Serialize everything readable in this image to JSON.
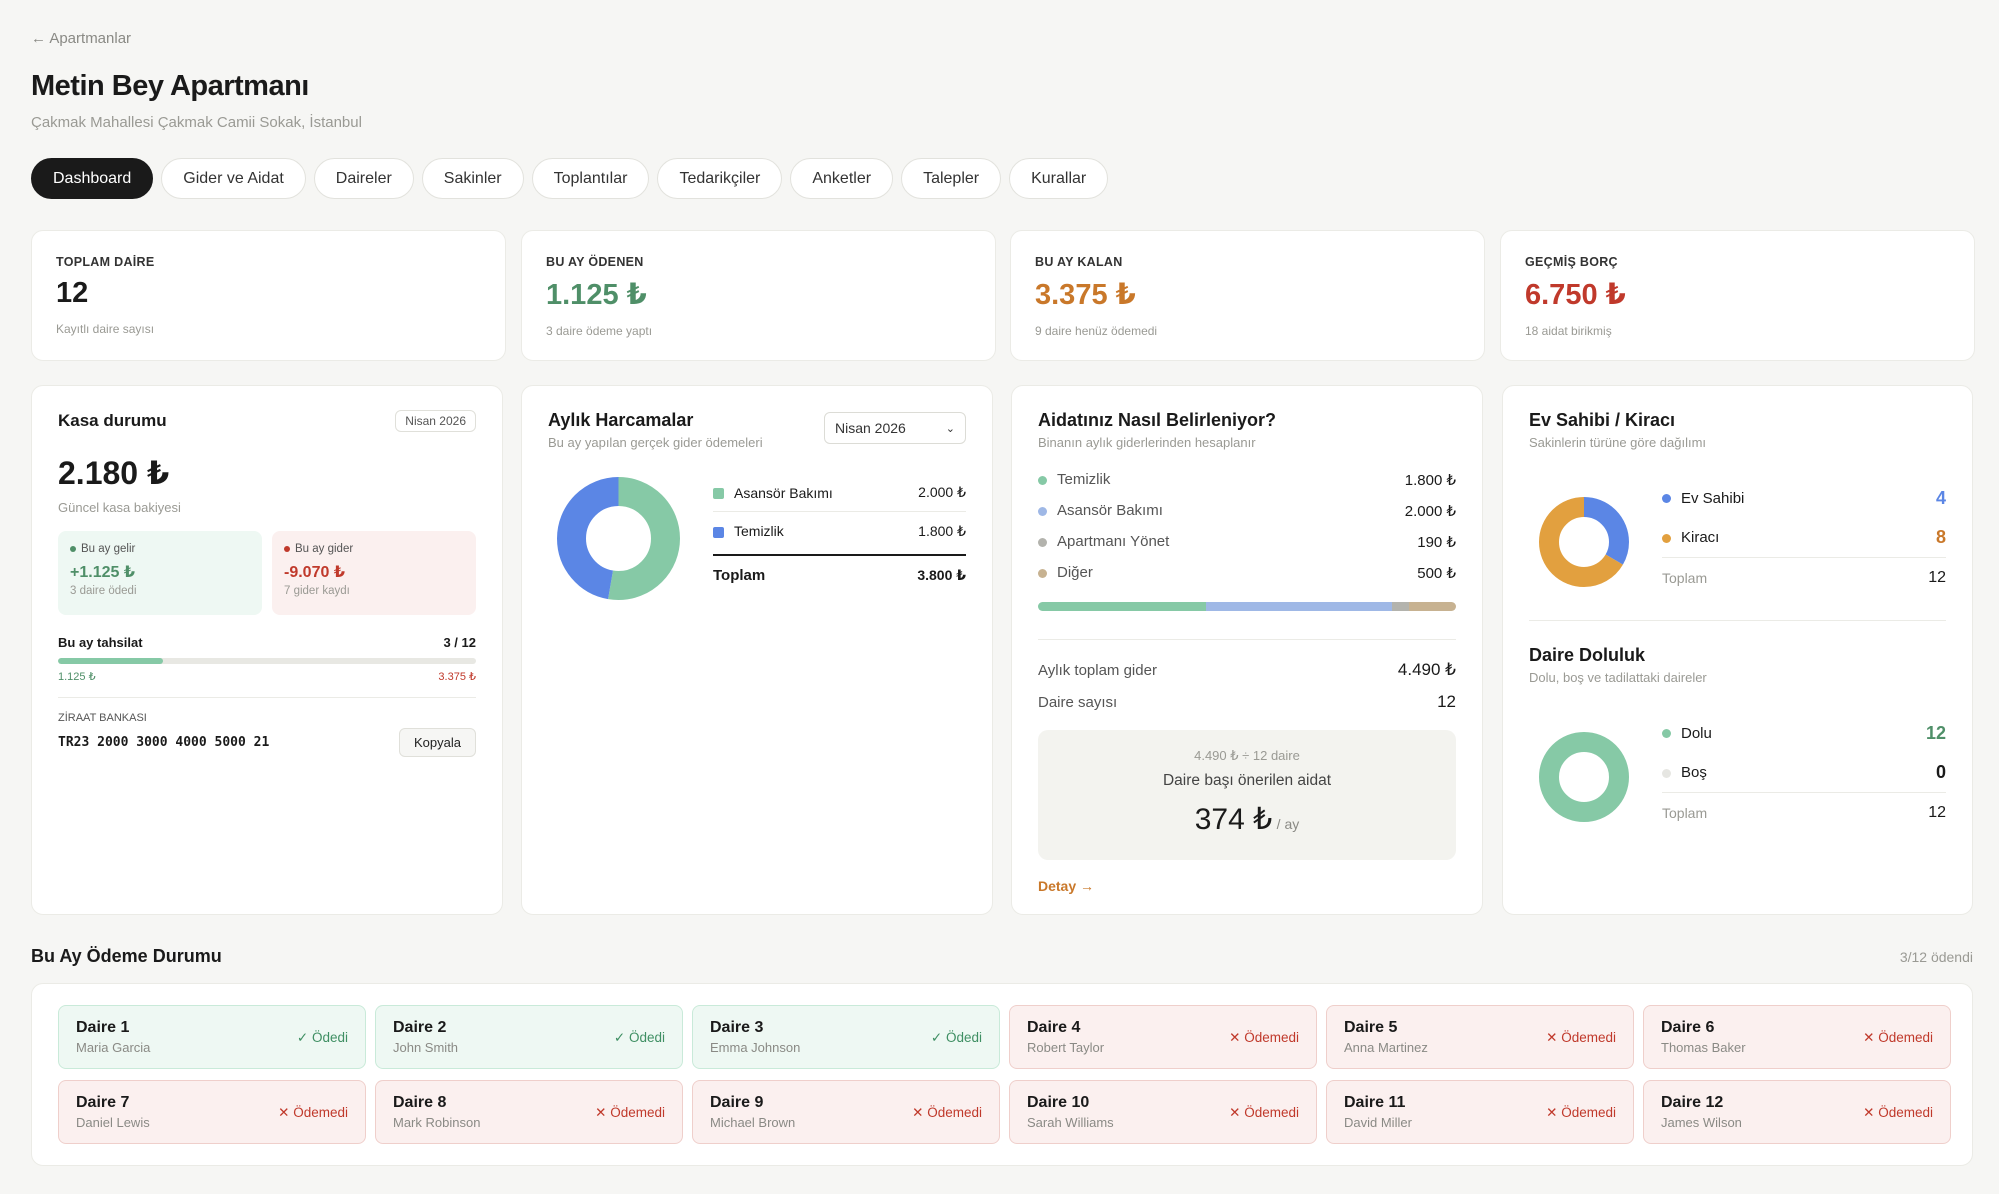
{
  "nav": {
    "back_label": "← Apartmanlar"
  },
  "header": {
    "title": "Metin Bey Apartmanı",
    "address": "Çakmak Mahallesi Çakmak Camii Sokak, İstanbul"
  },
  "tabs": [
    "Dashboard",
    "Gider ve Aidat",
    "Daireler",
    "Sakinler",
    "Toplantılar",
    "Tedarikçiler",
    "Anketler",
    "Talepler",
    "Kurallar"
  ],
  "kpis": [
    {
      "label": "TOPLAM DAİRE",
      "value": "12",
      "sub": "Kayıtlı daire sayısı",
      "color": "#1a1a1a"
    },
    {
      "label": "BU AY ÖDENEN",
      "value": "1.125 ₺",
      "sub": "3 daire ödeme yaptı",
      "color": "#4f8f68"
    },
    {
      "label": "BU AY KALAN",
      "value": "3.375 ₺",
      "sub": "9 daire henüz ödemedi",
      "color": "#c9782a"
    },
    {
      "label": "GEÇMİŞ BORÇ",
      "value": "6.750 ₺",
      "sub": "18 aidat birikmiş",
      "color": "#c0392b"
    }
  ],
  "kasa": {
    "title": "Kasa durumu",
    "period": "Nisan 2026",
    "balance": "2.180 ₺",
    "balance_label": "Güncel kasa bakiyesi",
    "income_label": "Bu ay gelir",
    "income_value": "+1.125 ₺",
    "income_sub": "3 daire ödedi",
    "expense_label": "Bu ay gider",
    "expense_value": "-9.070 ₺",
    "expense_sub": "7 gider kaydı",
    "collect_label": "Bu ay tahsilat",
    "collect_count": "3 / 12",
    "collect_progress": 0.25,
    "collected": "1.125 ₺",
    "remaining": "3.375 ₺",
    "bank_label": "ZİRAAT BANKASI",
    "iban": "TR23 2000 3000 4000 5000 21",
    "copy_label": "Kopyala"
  },
  "harcama": {
    "title": "Aylık Harcamalar",
    "subtitle": "Bu ay yapılan gerçek gider ödemeleri",
    "period": "Nisan 2026",
    "items": [
      {
        "label": "Asansör Bakımı",
        "value": "2.000 ₺",
        "amount": 2000,
        "color": "#86c9a6"
      },
      {
        "label": "Temizlik",
        "value": "1.800 ₺",
        "amount": 1800,
        "color": "#5b86e5"
      }
    ],
    "total_label": "Toplam",
    "total_value": "3.800 ₺"
  },
  "aidat": {
    "title": "Aidatınız Nasıl Belirleniyor?",
    "subtitle": "Binanın aylık giderlerinden hesaplanır",
    "items": [
      {
        "label": "Temizlik",
        "value": "1.800 ₺",
        "amount": 1800,
        "color": "#86c9a6"
      },
      {
        "label": "Asansör Bakımı",
        "value": "2.000 ₺",
        "amount": 2000,
        "color": "#9fb8e6"
      },
      {
        "label": "Apartmanı Yönet",
        "value": "190 ₺",
        "amount": 190,
        "color": "#b3b3ad"
      },
      {
        "label": "Diğer",
        "value": "500 ₺",
        "amount": 500,
        "color": "#c7b291"
      }
    ],
    "monthly_label": "Aylık toplam gider",
    "monthly_value": "4.490 ₺",
    "units_label": "Daire sayısı",
    "units_value": "12",
    "formula": "4.490 ₺ ÷ 12 daire",
    "suggest_label": "Daire başı önerilen aidat",
    "suggest_value": "374 ₺",
    "suggest_unit": "/ ay",
    "detail_link": "Detay →"
  },
  "evsahibi": {
    "title": "Ev Sahibi / Kiracı",
    "subtitle": "Sakinlerin türüne göre dağılımı",
    "items": [
      {
        "label": "Ev Sahibi",
        "value": "4",
        "count": 4,
        "color": "#5b86e5"
      },
      {
        "label": "Kiracı",
        "value": "8",
        "count": 8,
        "color": "#e2a03f"
      }
    ],
    "total_label": "Toplam",
    "total_value": "12"
  },
  "doluluk": {
    "title": "Daire Doluluk",
    "subtitle": "Dolu, boş ve tadilattaki daireler",
    "items": [
      {
        "label": "Dolu",
        "value": "12",
        "count": 12,
        "color": "#86c9a6",
        "value_color": "#4f8f68"
      },
      {
        "label": "Boş",
        "value": "0",
        "count": 0,
        "color": "#e6e6e2",
        "value_color": "#1a1a1a"
      }
    ],
    "total_label": "Toplam",
    "total_value": "12"
  },
  "odeme": {
    "title": "Bu Ay Ödeme Durumu",
    "summary": "3/12 ödendi",
    "units": [
      {
        "name": "Daire 1",
        "person": "Maria Garcia",
        "status": "✓ Ödedi",
        "paid": true
      },
      {
        "name": "Daire 2",
        "person": "John Smith",
        "status": "✓ Ödedi",
        "paid": true
      },
      {
        "name": "Daire 3",
        "person": "Emma Johnson",
        "status": "✓ Ödedi",
        "paid": true
      },
      {
        "name": "Daire 4",
        "person": "Robert Taylor",
        "status": "✕ Ödemedi",
        "paid": false
      },
      {
        "name": "Daire 5",
        "person": "Anna Martinez",
        "status": "✕ Ödemedi",
        "paid": false
      },
      {
        "name": "Daire 6",
        "person": "Thomas Baker",
        "status": "✕ Ödemedi",
        "paid": false
      },
      {
        "name": "Daire 7",
        "person": "Daniel Lewis",
        "status": "✕ Ödemedi",
        "paid": false
      },
      {
        "name": "Daire 8",
        "person": "Mark Robinson",
        "status": "✕ Ödemedi",
        "paid": false
      },
      {
        "name": "Daire 9",
        "person": "Michael Brown",
        "status": "✕ Ödemedi",
        "paid": false
      },
      {
        "name": "Daire 10",
        "person": "Sarah Williams",
        "status": "✕ Ödemedi",
        "paid": false
      },
      {
        "name": "Daire 11",
        "person": "David Miller",
        "status": "✕ Ödemedi",
        "paid": false
      },
      {
        "name": "Daire 12",
        "person": "James Wilson",
        "status": "✕ Ödemedi",
        "paid": false
      }
    ]
  }
}
